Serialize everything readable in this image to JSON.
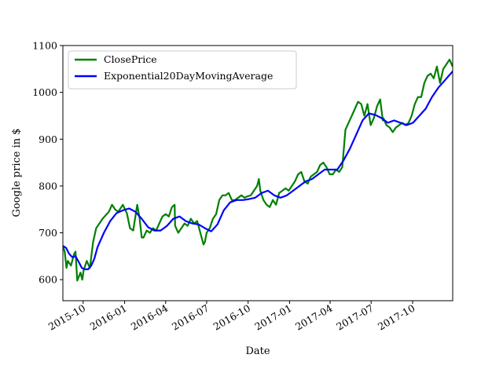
{
  "chart_data": {
    "type": "line",
    "title": "",
    "xlabel": "Date",
    "ylabel": "Google price in $",
    "xlim": [
      "2015-08-17",
      "2017-12-29"
    ],
    "ylim": [
      555,
      1100
    ],
    "yticks": [
      600,
      700,
      800,
      900,
      1000,
      1100
    ],
    "xticks": [
      {
        "date": "2015-10-01",
        "label": "2015-10"
      },
      {
        "date": "2016-01-01",
        "label": "2016-01"
      },
      {
        "date": "2016-04-01",
        "label": "2016-04"
      },
      {
        "date": "2016-07-01",
        "label": "2016-07"
      },
      {
        "date": "2016-10-01",
        "label": "2016-10"
      },
      {
        "date": "2017-01-01",
        "label": "2017-01"
      },
      {
        "date": "2017-04-01",
        "label": "2017-04"
      },
      {
        "date": "2017-07-01",
        "label": "2017-07"
      },
      {
        "date": "2017-10-01",
        "label": "2017-10"
      }
    ],
    "grid": false,
    "legend_position": "top-left",
    "series": [
      {
        "name": "ClosePrice",
        "color": "#008000",
        "x": [
          "2015-08-17",
          "2015-08-21",
          "2015-08-25",
          "2015-08-28",
          "2015-09-04",
          "2015-09-11",
          "2015-09-14",
          "2015-09-18",
          "2015-09-25",
          "2015-09-29",
          "2015-10-02",
          "2015-10-09",
          "2015-10-16",
          "2015-10-23",
          "2015-10-30",
          "2015-11-13",
          "2015-11-27",
          "2015-12-04",
          "2015-12-11",
          "2015-12-18",
          "2015-12-28",
          "2016-01-06",
          "2016-01-13",
          "2016-01-20",
          "2016-01-29",
          "2016-02-03",
          "2016-02-08",
          "2016-02-12",
          "2016-02-19",
          "2016-02-26",
          "2016-03-04",
          "2016-03-11",
          "2016-03-18",
          "2016-03-25",
          "2016-04-01",
          "2016-04-08",
          "2016-04-15",
          "2016-04-21",
          "2016-04-22",
          "2016-04-29",
          "2016-05-06",
          "2016-05-13",
          "2016-05-20",
          "2016-05-27",
          "2016-06-03",
          "2016-06-10",
          "2016-06-17",
          "2016-06-24",
          "2016-06-27",
          "2016-07-01",
          "2016-07-08",
          "2016-07-15",
          "2016-07-22",
          "2016-07-29",
          "2016-08-05",
          "2016-08-12",
          "2016-08-19",
          "2016-08-26",
          "2016-09-02",
          "2016-09-09",
          "2016-09-16",
          "2016-09-23",
          "2016-09-30",
          "2016-10-07",
          "2016-10-14",
          "2016-10-21",
          "2016-10-25",
          "2016-10-28",
          "2016-11-04",
          "2016-11-11",
          "2016-11-18",
          "2016-11-25",
          "2016-12-02",
          "2016-12-09",
          "2016-12-16",
          "2016-12-23",
          "2016-12-30",
          "2017-01-06",
          "2017-01-13",
          "2017-01-20",
          "2017-01-27",
          "2017-02-03",
          "2017-02-10",
          "2017-02-17",
          "2017-02-24",
          "2017-03-03",
          "2017-03-10",
          "2017-03-17",
          "2017-03-24",
          "2017-03-31",
          "2017-04-07",
          "2017-04-14",
          "2017-04-21",
          "2017-04-28",
          "2017-05-05",
          "2017-05-12",
          "2017-05-19",
          "2017-05-26",
          "2017-06-02",
          "2017-06-09",
          "2017-06-16",
          "2017-06-23",
          "2017-06-30",
          "2017-07-07",
          "2017-07-14",
          "2017-07-21",
          "2017-07-27",
          "2017-07-28",
          "2017-08-04",
          "2017-08-11",
          "2017-08-18",
          "2017-08-25",
          "2017-09-01",
          "2017-09-08",
          "2017-09-15",
          "2017-09-22",
          "2017-09-29",
          "2017-10-06",
          "2017-10-13",
          "2017-10-20",
          "2017-10-27",
          "2017-11-03",
          "2017-11-10",
          "2017-11-17",
          "2017-11-24",
          "2017-12-01",
          "2017-12-08",
          "2017-12-15",
          "2017-12-22",
          "2017-12-29"
        ],
        "y": [
          672,
          660,
          625,
          640,
          630,
          655,
          660,
          598,
          615,
          600,
          620,
          640,
          625,
          680,
          710,
          730,
          745,
          760,
          750,
          745,
          760,
          742,
          710,
          705,
          760,
          732,
          690,
          690,
          705,
          700,
          710,
          705,
          720,
          735,
          740,
          735,
          755,
          760,
          715,
          700,
          710,
          720,
          715,
          730,
          720,
          725,
          700,
          675,
          680,
          700,
          710,
          730,
          740,
          770,
          780,
          780,
          785,
          770,
          770,
          775,
          780,
          775,
          778,
          780,
          790,
          800,
          815,
          790,
          770,
          760,
          755,
          770,
          760,
          785,
          790,
          795,
          790,
          800,
          810,
          825,
          830,
          810,
          805,
          820,
          825,
          830,
          845,
          850,
          840,
          825,
          825,
          835,
          830,
          840,
          920,
          935,
          950,
          965,
          980,
          975,
          950,
          975,
          930,
          945,
          970,
          985,
          940,
          945,
          930,
          925,
          915,
          925,
          930,
          935,
          930,
          935,
          950,
          975,
          990,
          990,
          1020,
          1035,
          1040,
          1030,
          1055,
          1020,
          1050,
          1060,
          1070,
          1055
        ]
      },
      {
        "name": "Exponential20DayMovingAverage",
        "color": "#0000ff",
        "x": [
          "2015-08-17",
          "2015-08-24",
          "2015-08-31",
          "2015-09-07",
          "2015-09-14",
          "2015-09-21",
          "2015-09-28",
          "2015-10-05",
          "2015-10-12",
          "2015-10-19",
          "2015-10-26",
          "2015-11-02",
          "2015-11-16",
          "2015-11-30",
          "2015-12-14",
          "2015-12-28",
          "2016-01-11",
          "2016-01-25",
          "2016-02-08",
          "2016-02-22",
          "2016-03-07",
          "2016-03-21",
          "2016-04-04",
          "2016-04-18",
          "2016-05-02",
          "2016-05-16",
          "2016-05-30",
          "2016-06-13",
          "2016-06-27",
          "2016-07-11",
          "2016-07-25",
          "2016-08-08",
          "2016-08-22",
          "2016-09-05",
          "2016-09-19",
          "2016-10-03",
          "2016-10-17",
          "2016-10-31",
          "2016-11-14",
          "2016-11-28",
          "2016-12-12",
          "2016-12-26",
          "2017-01-09",
          "2017-01-23",
          "2017-02-06",
          "2017-02-20",
          "2017-03-06",
          "2017-03-20",
          "2017-04-03",
          "2017-04-17",
          "2017-05-01",
          "2017-05-15",
          "2017-05-29",
          "2017-06-12",
          "2017-06-26",
          "2017-07-10",
          "2017-07-24",
          "2017-08-07",
          "2017-08-21",
          "2017-09-04",
          "2017-09-18",
          "2017-10-02",
          "2017-10-16",
          "2017-10-30",
          "2017-11-13",
          "2017-11-27",
          "2017-12-11",
          "2017-12-29"
        ],
        "y": [
          672,
          668,
          655,
          648,
          650,
          638,
          625,
          622,
          622,
          630,
          645,
          670,
          700,
          725,
          742,
          748,
          752,
          745,
          730,
          712,
          705,
          705,
          715,
          730,
          735,
          725,
          720,
          718,
          710,
          703,
          718,
          748,
          765,
          770,
          770,
          772,
          775,
          785,
          790,
          780,
          775,
          780,
          790,
          800,
          810,
          815,
          825,
          835,
          835,
          835,
          855,
          880,
          910,
          940,
          955,
          952,
          945,
          935,
          940,
          935,
          930,
          935,
          950,
          965,
          990,
          1010,
          1025,
          1045
        ]
      }
    ]
  }
}
